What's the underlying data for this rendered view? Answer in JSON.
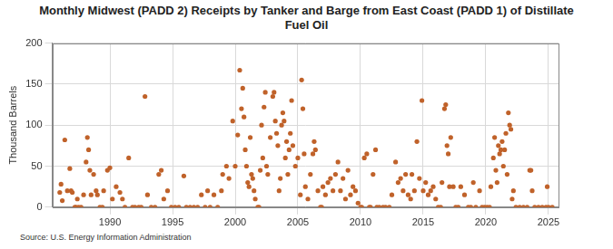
{
  "chart_data": {
    "type": "scatter",
    "title": "Monthly Midwest (PADD 2) Receipts by Tanker and Barge from East Coast (PADD 1) of Distillate Fuel Oil",
    "y_label": "Thousand Barrels",
    "source": "Source: U.S. Energy Information Administration",
    "color": "#c0622a",
    "marker": "circle",
    "grid": true,
    "xlim": [
      1985.4,
      2025.8
    ],
    "xticks": [
      1990,
      1995,
      2000,
      2005,
      2010,
      2015,
      2020,
      2025
    ],
    "ylim": [
      0,
      200
    ],
    "yticks": [
      0,
      50,
      100,
      150,
      200
    ],
    "x": [
      1986.0,
      1986.1,
      1986.2,
      1986.4,
      1986.6,
      1986.8,
      1986.9,
      1987.0,
      1987.2,
      1987.3,
      1987.4,
      1987.5,
      1987.7,
      1987.9,
      1988.1,
      1988.2,
      1988.3,
      1988.4,
      1988.5,
      1988.7,
      1988.9,
      1989.0,
      1989.2,
      1989.4,
      1989.5,
      1989.8,
      1990.0,
      1990.2,
      1990.5,
      1990.8,
      1991.0,
      1991.2,
      1991.5,
      1991.8,
      1992.0,
      1992.3,
      1992.5,
      1992.8,
      1993.0,
      1993.3,
      1993.6,
      1993.9,
      1994.1,
      1994.3,
      1994.6,
      1994.9,
      1995.2,
      1995.5,
      1995.9,
      1996.1,
      1996.4,
      1996.7,
      1997.0,
      1997.3,
      1997.6,
      1997.8,
      1998.0,
      1998.3,
      1998.6,
      1998.9,
      1999.0,
      1999.3,
      1999.5,
      1999.8,
      2000.0,
      2000.2,
      2000.36,
      2000.5,
      2000.6,
      2000.7,
      2000.8,
      2000.9,
      2001.0,
      2001.1,
      2001.2,
      2001.3,
      2001.4,
      2001.5,
      2001.6,
      2001.8,
      2001.9,
      2002.0,
      2002.1,
      2002.2,
      2002.3,
      2002.4,
      2002.5,
      2002.6,
      2002.8,
      2003.0,
      2003.1,
      2003.2,
      2003.3,
      2003.4,
      2003.5,
      2003.6,
      2003.7,
      2003.8,
      2003.9,
      2004.0,
      2004.1,
      2004.2,
      2004.3,
      2004.4,
      2004.5,
      2004.6,
      2004.8,
      2005.0,
      2005.2,
      2005.3,
      2005.4,
      2005.5,
      2005.6,
      2005.8,
      2006.0,
      2006.2,
      2006.3,
      2006.4,
      2006.6,
      2006.8,
      2006.9,
      2007.0,
      2007.2,
      2007.4,
      2007.6,
      2007.8,
      2008.0,
      2008.2,
      2008.4,
      2008.6,
      2008.8,
      2009.0,
      2009.2,
      2009.4,
      2009.6,
      2009.8,
      2010.0,
      2010.1,
      2010.3,
      2010.5,
      2010.7,
      2010.8,
      2011.0,
      2011.2,
      2011.3,
      2011.5,
      2011.8,
      2012.0,
      2012.3,
      2012.5,
      2012.8,
      2013.0,
      2013.2,
      2013.4,
      2013.6,
      2013.8,
      2014.0,
      2014.1,
      2014.3,
      2014.5,
      2014.7,
      2014.9,
      2015.0,
      2015.2,
      2015.4,
      2015.6,
      2015.8,
      2016.0,
      2016.2,
      2016.4,
      2016.5,
      2016.7,
      2016.8,
      2016.9,
      2017.0,
      2017.1,
      2017.2,
      2017.4,
      2017.6,
      2017.8,
      2018.0,
      2018.3,
      2018.6,
      2018.8,
      2019.0,
      2019.2,
      2019.5,
      2019.7,
      2019.9,
      2020.1,
      2020.3,
      2020.4,
      2020.6,
      2020.7,
      2020.8,
      2020.9,
      2021.0,
      2021.1,
      2021.2,
      2021.3,
      2021.4,
      2021.5,
      2021.6,
      2021.7,
      2021.8,
      2021.9,
      2022.0,
      2022.1,
      2022.2,
      2022.4,
      2022.7,
      2023.0,
      2023.3,
      2023.5,
      2023.6,
      2023.7,
      2023.9,
      2024.2,
      2024.5,
      2024.8,
      2024.9,
      2025.0,
      2025.3
    ],
    "values": [
      18,
      28,
      8,
      82,
      20,
      47,
      20,
      18,
      0,
      0,
      10,
      0,
      0,
      15,
      55,
      85,
      70,
      45,
      15,
      40,
      20,
      15,
      0,
      0,
      20,
      45,
      48,
      10,
      25,
      18,
      10,
      0,
      60,
      0,
      0,
      0,
      0,
      135,
      15,
      0,
      0,
      40,
      45,
      10,
      20,
      0,
      0,
      0,
      38,
      0,
      0,
      0,
      0,
      15,
      0,
      20,
      0,
      15,
      0,
      20,
      40,
      50,
      35,
      105,
      50,
      88,
      167,
      120,
      145,
      110,
      70,
      50,
      30,
      25,
      85,
      40,
      35,
      20,
      10,
      0,
      0,
      45,
      100,
      60,
      122,
      140,
      50,
      40,
      85,
      135,
      140,
      105,
      90,
      75,
      20,
      35,
      100,
      115,
      105,
      60,
      80,
      40,
      70,
      90,
      130,
      75,
      50,
      60,
      15,
      155,
      120,
      65,
      25,
      10,
      40,
      65,
      80,
      70,
      20,
      0,
      0,
      25,
      15,
      30,
      35,
      20,
      40,
      55,
      20,
      35,
      10,
      45,
      15,
      25,
      20,
      5,
      0,
      0,
      60,
      65,
      0,
      0,
      40,
      70,
      0,
      0,
      0,
      0,
      0,
      15,
      55,
      30,
      35,
      20,
      40,
      15,
      10,
      40,
      20,
      80,
      35,
      130,
      20,
      30,
      15,
      20,
      25,
      10,
      0,
      0,
      30,
      120,
      125,
      75,
      65,
      25,
      85,
      25,
      0,
      0,
      25,
      15,
      0,
      0,
      30,
      0,
      20,
      0,
      0,
      0,
      0,
      25,
      60,
      85,
      45,
      30,
      75,
      65,
      70,
      80,
      50,
      70,
      90,
      40,
      115,
      100,
      95,
      10,
      20,
      0,
      0,
      0,
      0,
      45,
      45,
      20,
      0,
      0,
      0,
      0,
      25,
      0,
      0
    ]
  }
}
